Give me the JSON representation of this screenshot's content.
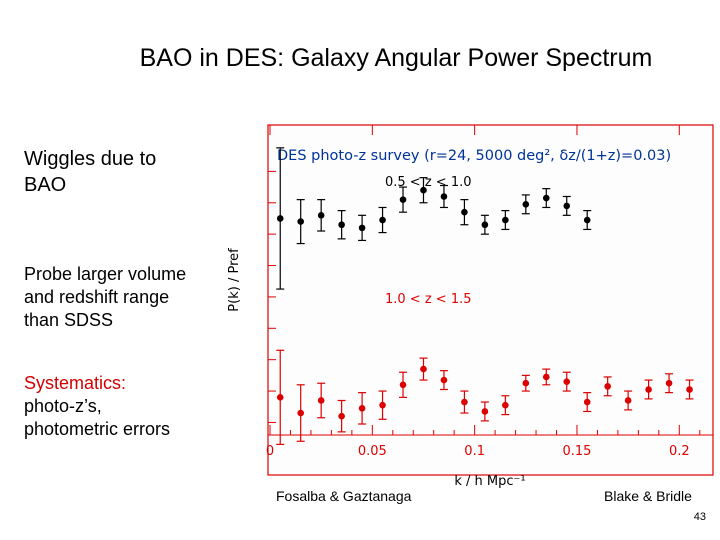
{
  "slide": {
    "title": "BAO in DES: Galaxy Angular Power Spectrum",
    "bullets": {
      "b1": "Wiggles due to BAO",
      "b2": "Probe larger volume and redshift range than SDSS",
      "b3_red": "Systematics:",
      "b3_rest": "photo-z’s, photometric errors"
    },
    "credit_left": "Fosalba & Gaztanaga",
    "credit_right": "Blake & Bridle",
    "page_number": "43"
  },
  "colors": {
    "series_black": "#000000",
    "series_red": "#dd0000",
    "frame": "#dd0000",
    "text": "#000000"
  },
  "chart_data": {
    "type": "scatter",
    "title": "DES photo-z survey (r=24, 5000 deg², δz/(1+z)=0.03)",
    "xlabel": "k / h Mpc⁻¹",
    "ylabel": "P(k) / Pref",
    "xlim": [
      0,
      0.215
    ],
    "x_ticks": [
      0,
      0.05,
      0.1,
      0.15,
      0.2
    ],
    "x_tick_labels": [
      "0",
      "0.05",
      "0.1",
      "0.15",
      "0.2"
    ],
    "y_tick_labels_shown": false,
    "series": [
      {
        "name": "0.5 < z < 1.0",
        "color": "#000000",
        "x": [
          0.005,
          0.015,
          0.025,
          0.035,
          0.045,
          0.055,
          0.065,
          0.075,
          0.085,
          0.095,
          0.105,
          0.115,
          0.125,
          0.135,
          0.145,
          0.155
        ],
        "y": [
          1.0,
          0.98,
          1.02,
          0.96,
          0.94,
          0.99,
          1.12,
          1.18,
          1.14,
          1.04,
          0.96,
          0.99,
          1.09,
          1.13,
          1.08,
          0.99
        ],
        "err": [
          0.45,
          0.14,
          0.1,
          0.09,
          0.08,
          0.08,
          0.08,
          0.08,
          0.07,
          0.08,
          0.06,
          0.06,
          0.06,
          0.06,
          0.06,
          0.06
        ]
      },
      {
        "name": "1.0 < z < 1.5",
        "color": "#dd0000",
        "x": [
          0.005,
          0.015,
          0.025,
          0.035,
          0.045,
          0.055,
          0.065,
          0.075,
          0.085,
          0.095,
          0.105,
          0.115,
          0.125,
          0.135,
          0.145,
          0.155,
          0.165,
          0.175,
          0.185,
          0.195,
          0.205
        ],
        "y": [
          -0.14,
          -0.24,
          -0.16,
          -0.26,
          -0.21,
          -0.19,
          -0.06,
          0.04,
          -0.03,
          -0.17,
          -0.23,
          -0.19,
          -0.05,
          -0.01,
          -0.04,
          -0.17,
          -0.07,
          -0.16,
          -0.09,
          -0.05,
          -0.09
        ],
        "err": [
          0.3,
          0.18,
          0.11,
          0.1,
          0.1,
          0.09,
          0.08,
          0.07,
          0.06,
          0.07,
          0.06,
          0.06,
          0.05,
          0.05,
          0.06,
          0.06,
          0.06,
          0.06,
          0.06,
          0.06,
          0.06
        ]
      }
    ]
  }
}
